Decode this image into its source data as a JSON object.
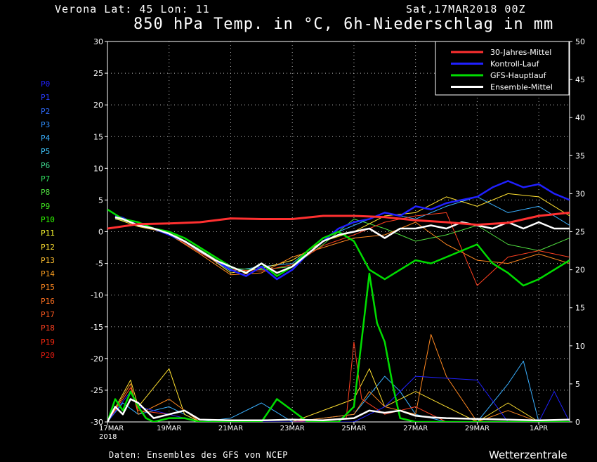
{
  "header": {
    "place": "Verona   Lat: 45 Lon: 11",
    "date": "Sat,17MAR2018 00Z",
    "title": "850 hPa Temp. in °C, 6h-Niederschlag in mm"
  },
  "footer": {
    "credit": "Daten: Ensembles des GFS von NCEP",
    "brand": "Wetterzentrale"
  },
  "members": [
    {
      "label": "P0",
      "color": "#2020ff"
    },
    {
      "label": "P1",
      "color": "#2a3cff"
    },
    {
      "label": "P2",
      "color": "#2f6cff"
    },
    {
      "label": "P3",
      "color": "#2f8fff"
    },
    {
      "label": "P4",
      "color": "#3ab0ff"
    },
    {
      "label": "P5",
      "color": "#40c8ff"
    },
    {
      "label": "P6",
      "color": "#3fd890"
    },
    {
      "label": "P7",
      "color": "#30e060"
    },
    {
      "label": "P8",
      "color": "#50e040"
    },
    {
      "label": "P9",
      "color": "#40e820"
    },
    {
      "label": "P10",
      "color": "#30ff00"
    },
    {
      "label": "P11",
      "color": "#ffff30"
    },
    {
      "label": "P12",
      "color": "#ffe030"
    },
    {
      "label": "P13",
      "color": "#ffc030"
    },
    {
      "label": "P14",
      "color": "#ffa020"
    },
    {
      "label": "P15",
      "color": "#ff8820"
    },
    {
      "label": "P16",
      "color": "#ff7020"
    },
    {
      "label": "P17",
      "color": "#ff5a20"
    },
    {
      "label": "P18",
      "color": "#ff4020"
    },
    {
      "label": "P19",
      "color": "#ff2a10"
    },
    {
      "label": "P20",
      "color": "#e01a10"
    }
  ],
  "chart_data": {
    "type": "line",
    "title": "850 hPa Temp. in °C, 6h-Niederschlag in mm",
    "x_unit": "days from 17MAR2018 00Z",
    "xlim": [
      0,
      15
    ],
    "x_ticks": [
      {
        "x": 0,
        "label": "17MAR",
        "sub": "2018"
      },
      {
        "x": 2,
        "label": "19MAR"
      },
      {
        "x": 4,
        "label": "21MAR"
      },
      {
        "x": 6,
        "label": "23MAR"
      },
      {
        "x": 8,
        "label": "25MAR"
      },
      {
        "x": 10,
        "label": "27MAR"
      },
      {
        "x": 12,
        "label": "29MAR"
      },
      {
        "x": 14,
        "label": "1APR"
      }
    ],
    "y_left": {
      "label": "850 hPa Temp. (°C)",
      "lim": [
        -30,
        30
      ],
      "ticks": [
        30,
        25,
        20,
        15,
        10,
        5,
        0,
        -5,
        -10,
        -15,
        -20,
        -25,
        -30
      ]
    },
    "y_right": {
      "label": "6h-Niederschlag (mm)",
      "lim": [
        0,
        50
      ],
      "ticks": [
        50,
        45,
        40,
        35,
        30,
        25,
        20,
        15,
        10,
        5,
        0
      ]
    },
    "grid": true,
    "legend_position": "top-right",
    "legend": [
      {
        "name": "30-Jahres-Mittel",
        "color": "#ff3030"
      },
      {
        "name": "Kontroll-Lauf",
        "color": "#2020ff"
      },
      {
        "name": "GFS-Hauptlauf",
        "color": "#00dd00"
      },
      {
        "name": "Ensemble-Mittel",
        "color": "#ffffff"
      }
    ],
    "temperature_series": [
      {
        "name": "30-Jahres-Mittel",
        "color": "#ff3030",
        "width": 3,
        "x": [
          0,
          1,
          2,
          3,
          4,
          5,
          6,
          7,
          8,
          9,
          10,
          11,
          12,
          13,
          14,
          15
        ],
        "y": [
          0.5,
          1.2,
          1.3,
          1.5,
          2.1,
          2.0,
          2.0,
          2.5,
          2.5,
          2.3,
          1.8,
          1.5,
          1.1,
          1.4,
          2.5,
          3.0
        ]
      },
      {
        "name": "Kontroll-Lauf",
        "color": "#2020ff",
        "width": 2.5,
        "x": [
          0.25,
          0.5,
          1,
          1.5,
          2,
          2.5,
          3,
          3.5,
          4,
          4.5,
          5,
          5.5,
          6,
          6.5,
          7,
          7.5,
          8,
          8.5,
          9,
          9.5,
          10,
          10.5,
          11,
          11.5,
          12,
          12.5,
          13,
          13.5,
          14,
          14.5,
          15
        ],
        "y": [
          2.5,
          2.2,
          1.0,
          0.5,
          -0.5,
          -1.5,
          -3.0,
          -4.5,
          -6.0,
          -7.0,
          -5.5,
          -7.5,
          -6.0,
          -3.5,
          -1.5,
          0.5,
          1.5,
          2.0,
          3.0,
          2.5,
          4.0,
          3.5,
          4.5,
          5.0,
          5.5,
          7.0,
          8.0,
          7.0,
          7.5,
          6.0,
          5.0
        ]
      },
      {
        "name": "GFS-Hauptlauf",
        "color": "#00dd00",
        "width": 2.5,
        "x": [
          0,
          0.5,
          1,
          1.5,
          2,
          2.5,
          3,
          3.5,
          4,
          4.5,
          5,
          5.5,
          6,
          6.5,
          7,
          7.5,
          8,
          8.5,
          9,
          9.5,
          10,
          10.5,
          11,
          11.5,
          12,
          12.5,
          13,
          13.5,
          14,
          14.5,
          15
        ],
        "y": [
          3.5,
          2.0,
          1.5,
          0.5,
          0.0,
          -1.0,
          -2.5,
          -4.0,
          -5.5,
          -6.5,
          -5.0,
          -7.0,
          -5.5,
          -3.0,
          -1.0,
          0.0,
          -1.5,
          -6.0,
          -7.5,
          -6.0,
          -4.5,
          -5.0,
          -4.0,
          -3.0,
          -2.0,
          -5.0,
          -6.5,
          -8.5,
          -7.5,
          -6.0,
          -4.5
        ]
      },
      {
        "name": "Ensemble-Mittel",
        "color": "#ffffff",
        "width": 2.5,
        "x": [
          0.25,
          0.5,
          1,
          1.5,
          2,
          2.5,
          3,
          3.5,
          4,
          4.5,
          5,
          5.5,
          6,
          6.5,
          7,
          7.5,
          8,
          8.5,
          9,
          9.5,
          10,
          10.5,
          11,
          11.5,
          12,
          12.5,
          13,
          13.5,
          14,
          14.5,
          15
        ],
        "y": [
          2.3,
          2.0,
          1.0,
          0.5,
          -0.3,
          -1.5,
          -3.0,
          -4.5,
          -5.5,
          -6.5,
          -5.0,
          -6.5,
          -5.5,
          -3.5,
          -1.5,
          -0.5,
          0.0,
          0.5,
          -1.0,
          0.5,
          0.5,
          1.0,
          0.5,
          1.5,
          1.0,
          0.5,
          1.5,
          0.5,
          1.5,
          0.5,
          0.5
        ]
      },
      {
        "name": "P4",
        "color": "#3ab0ff",
        "width": 1,
        "x": [
          0.25,
          1,
          2,
          3,
          4,
          5,
          6,
          7,
          8,
          9,
          10,
          11,
          12,
          13,
          14,
          15
        ],
        "y": [
          2.0,
          1.2,
          -0.5,
          -3.2,
          -6.2,
          -5.5,
          -5.0,
          -1.0,
          1.0,
          3.0,
          2.0,
          4.0,
          5.5,
          3.0,
          4.0,
          1.0
        ]
      },
      {
        "name": "P8",
        "color": "#50e040",
        "width": 1,
        "x": [
          0.25,
          1,
          2,
          3,
          4,
          5,
          6,
          7,
          8,
          9,
          10,
          11,
          12,
          13,
          14,
          15
        ],
        "y": [
          2.2,
          1.0,
          0.0,
          -2.8,
          -5.8,
          -6.0,
          -5.5,
          -2.0,
          2.0,
          0.5,
          -1.5,
          -0.5,
          1.0,
          -2.0,
          -3.0,
          -1.0
        ]
      },
      {
        "name": "P12",
        "color": "#ffe030",
        "width": 1,
        "x": [
          0.25,
          1,
          2,
          3,
          4,
          5,
          6,
          7,
          8,
          9,
          10,
          11,
          12,
          13,
          14,
          15
        ],
        "y": [
          2.1,
          0.8,
          -0.2,
          -3.0,
          -6.5,
          -5.8,
          -4.5,
          -1.5,
          0.0,
          2.5,
          3.0,
          5.5,
          4.0,
          6.0,
          5.5,
          2.5
        ]
      },
      {
        "name": "P15",
        "color": "#ff8820",
        "width": 1,
        "x": [
          0.25,
          1,
          2,
          3,
          4,
          5,
          6,
          7,
          8,
          9,
          10,
          11,
          12,
          13,
          14,
          15
        ],
        "y": [
          2.4,
          1.1,
          -0.4,
          -3.5,
          -6.8,
          -6.5,
          -4.0,
          -2.5,
          -1.0,
          -0.5,
          1.5,
          -2.0,
          -4.5,
          -5.0,
          -3.5,
          -5.0
        ]
      },
      {
        "name": "P18",
        "color": "#ff4020",
        "width": 1,
        "x": [
          0.25,
          1,
          2,
          3,
          4,
          5,
          6,
          7,
          8,
          9,
          10,
          11,
          12,
          13,
          14,
          15
        ],
        "y": [
          2.3,
          1.0,
          -0.3,
          -3.3,
          -6.0,
          -6.2,
          -5.2,
          -2.2,
          -0.5,
          1.5,
          2.5,
          3.0,
          -8.5,
          -4.0,
          -3.0,
          -4.0
        ]
      }
    ],
    "precip_series": [
      {
        "name": "GFS-Hauptlauf",
        "color": "#00dd00",
        "width": 2.5,
        "x": [
          0,
          0.25,
          0.5,
          0.75,
          1,
          1.25,
          1.5,
          2,
          2.5,
          3,
          3.5,
          4,
          4.5,
          5,
          5.5,
          6,
          6.5,
          7,
          7.5,
          8,
          8.5,
          8.75,
          9,
          9.25,
          9.5,
          10,
          10.5,
          11,
          12,
          13,
          14,
          15
        ],
        "y": [
          0,
          3.0,
          1.5,
          4.0,
          2.0,
          0.5,
          0,
          0.5,
          0.5,
          0,
          0,
          0,
          0,
          0,
          3.0,
          1.5,
          0,
          0,
          0,
          2.0,
          19.5,
          13.0,
          10.5,
          5.0,
          0.5,
          0,
          0,
          0,
          0,
          0,
          0,
          0
        ]
      },
      {
        "name": "Ensemble-Mittel",
        "color": "#ffffff",
        "width": 2.5,
        "x": [
          0,
          0.25,
          0.5,
          0.75,
          1,
          1.5,
          2,
          2.5,
          3,
          4,
          5,
          6,
          7,
          8,
          8.5,
          9,
          9.5,
          10,
          10.5,
          11,
          12,
          13,
          14,
          15
        ],
        "y": [
          0,
          2.0,
          1.0,
          3.0,
          2.5,
          0.5,
          1.0,
          1.5,
          0.3,
          0.2,
          0.2,
          0.3,
          0.2,
          0.5,
          1.5,
          1.2,
          1.5,
          0.8,
          0.6,
          0.5,
          0.4,
          0.3,
          0.2,
          0.3
        ]
      },
      {
        "name": "P4",
        "color": "#3ab0ff",
        "width": 1,
        "x": [
          0,
          0.5,
          1,
          2,
          3,
          4,
          5,
          6,
          8,
          9,
          9.5,
          10,
          11,
          12,
          13,
          13.5,
          14,
          15
        ],
        "y": [
          0,
          2.5,
          1.0,
          2.0,
          0,
          0.5,
          2.5,
          0,
          1.0,
          6.0,
          4.0,
          1.0,
          0,
          0,
          5.0,
          8.0,
          0,
          0
        ]
      },
      {
        "name": "P12",
        "color": "#ffe030",
        "width": 1,
        "x": [
          0,
          0.75,
          1,
          2,
          2.5,
          3,
          4,
          6,
          8,
          8.5,
          9,
          10,
          11,
          12,
          13,
          14,
          15
        ],
        "y": [
          0,
          5.5,
          2.0,
          7.0,
          1.0,
          0,
          0,
          0,
          3.0,
          7.0,
          2.0,
          4.0,
          2.0,
          0,
          2.5,
          0,
          0
        ]
      },
      {
        "name": "P15",
        "color": "#ff8820",
        "width": 1,
        "x": [
          0,
          0.75,
          1,
          2,
          3,
          4,
          6,
          8,
          8.5,
          9,
          10,
          10.5,
          11,
          12,
          13,
          14,
          15
        ],
        "y": [
          0,
          5.0,
          1.0,
          3.0,
          0,
          0,
          0,
          1.0,
          4.0,
          2.0,
          1.0,
          11.5,
          6.0,
          0,
          1.5,
          0,
          0
        ]
      },
      {
        "name": "P18",
        "color": "#ff4020",
        "width": 1,
        "x": [
          0,
          0.75,
          1,
          2,
          3,
          4,
          6,
          7.75,
          8,
          8.25,
          9,
          10,
          11,
          12,
          13,
          14,
          15
        ],
        "y": [
          0,
          4.5,
          1.5,
          1.0,
          0,
          0,
          0,
          0.5,
          10.5,
          3.0,
          1.0,
          2.0,
          0,
          0,
          0,
          0,
          0
        ]
      },
      {
        "name": "P0",
        "color": "#2020ff",
        "width": 1,
        "x": [
          0,
          0.75,
          1,
          2,
          3,
          4,
          6,
          8,
          9,
          10,
          12,
          13,
          14,
          14.5,
          15
        ],
        "y": [
          0,
          4.0,
          2.0,
          1.0,
          0,
          0,
          0,
          0,
          2.0,
          6.0,
          5.5,
          0,
          0,
          4.0,
          0
        ]
      }
    ]
  }
}
